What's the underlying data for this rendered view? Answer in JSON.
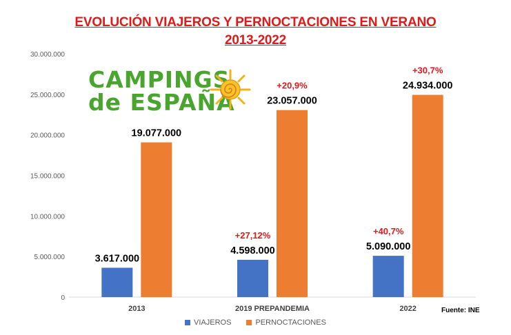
{
  "title_line1": "EVOLUCIÓN VIAJEROS Y PERNOCTACIONES EN VERANO",
  "title_line2": "2013-2022",
  "logo": {
    "line1": "CAMPINGS",
    "line2": "de ESPAÑA",
    "icon": "sun-icon"
  },
  "source": "Fuente: INE",
  "chart_data": {
    "type": "bar",
    "categories": [
      "2013",
      "2019 PREPANDEMIA",
      "2022"
    ],
    "series": [
      {
        "name": "VIAJEROS",
        "color": "#4472c4",
        "values": [
          3617000,
          4598000,
          5090000
        ],
        "value_labels": [
          "3.617.000",
          "4.598.000",
          "5.090.000"
        ],
        "change_labels": [
          "",
          "+27,12%",
          "+40,7%"
        ]
      },
      {
        "name": "PERNOCTACIONES",
        "color": "#ed7d31",
        "values": [
          19077000,
          23057000,
          24934000
        ],
        "value_labels": [
          "19.077.000",
          "23.057.000",
          "24.934.000"
        ],
        "change_labels": [
          "",
          "+20,9%",
          "+30,7%"
        ]
      }
    ],
    "ylim": [
      0,
      30000000
    ],
    "yticks": [
      0,
      5000000,
      10000000,
      15000000,
      20000000,
      25000000,
      30000000
    ],
    "ytick_labels": [
      "0",
      "5.000.000",
      "10.000.000",
      "15.000.000",
      "20.000.000",
      "25.000.000",
      "30.000.000"
    ],
    "grid": false,
    "legend_position": "bottom",
    "change_label_color": "#e0191b"
  }
}
